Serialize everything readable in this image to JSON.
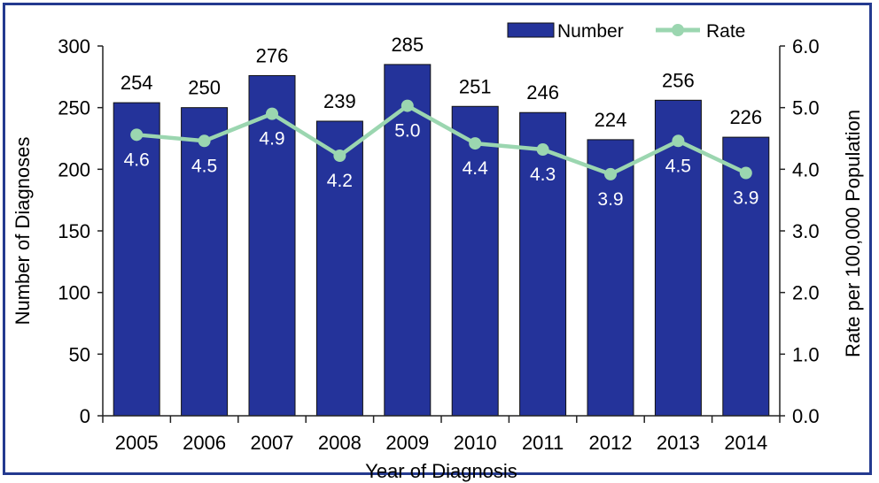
{
  "chart_data": {
    "type": "bar",
    "categories": [
      "2005",
      "2006",
      "2007",
      "2008",
      "2009",
      "2010",
      "2011",
      "2012",
      "2013",
      "2014"
    ],
    "series": [
      {
        "name": "Number",
        "type": "bar",
        "axis": "left",
        "values": [
          254,
          250,
          276,
          239,
          285,
          251,
          246,
          224,
          256,
          226
        ],
        "labels": [
          "254",
          "250",
          "276",
          "239",
          "285",
          "251",
          "246",
          "224",
          "256",
          "226"
        ]
      },
      {
        "name": "Rate",
        "type": "line",
        "axis": "right",
        "values": [
          4.56,
          4.46,
          4.9,
          4.22,
          5.03,
          4.42,
          4.32,
          3.92,
          4.46,
          3.94
        ],
        "labels": [
          "4.6",
          "4.5",
          "4.9",
          "4.2",
          "5.0",
          "4.4",
          "4.3",
          "3.9",
          "4.5",
          "3.9"
        ]
      }
    ],
    "xlabel": "Year of Diagnosis",
    "ylabel": "Number of Diagnoses",
    "y2label": "Rate per 100,000 Population",
    "ylim": [
      0,
      300
    ],
    "y2lim": [
      0,
      6
    ],
    "yticks": [
      "0",
      "50",
      "100",
      "150",
      "200",
      "250",
      "300"
    ],
    "y2ticks": [
      "0.0",
      "1.0",
      "2.0",
      "3.0",
      "4.0",
      "5.0",
      "6.0"
    ],
    "legend": {
      "position": "top-right",
      "items": [
        "Number",
        "Rate"
      ]
    },
    "grid": false,
    "colors": {
      "bar": "#24339a",
      "bar_edge": "#111111",
      "line": "#9bd6b0",
      "frame": "#243a8f"
    }
  }
}
